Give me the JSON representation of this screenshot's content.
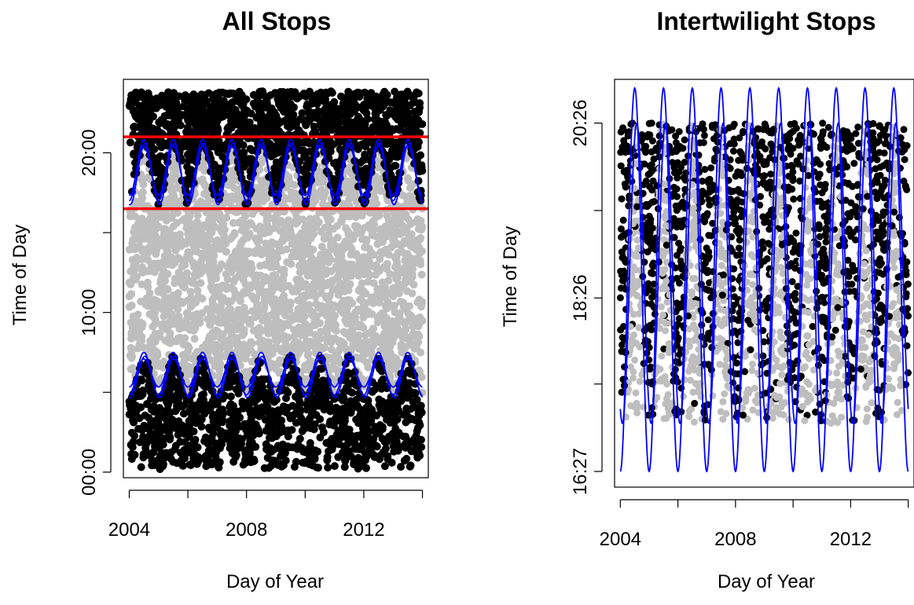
{
  "colors": {
    "night": "#000000",
    "day": "#bebebe",
    "twilight_curve": "#0000ff",
    "threshold_line": "#ff0000"
  },
  "chart_data": [
    {
      "type": "scatter",
      "title": "All Stops",
      "xlabel": "Day of Year",
      "ylabel": "Time of Day",
      "xlim": [
        2004,
        2014
      ],
      "ylim": [
        "00:00",
        "24:00"
      ],
      "x_ticks": [
        2004,
        2006,
        2008,
        2010,
        2012,
        2014
      ],
      "x_tick_labels": [
        "2004",
        "",
        "2008",
        "",
        "2012",
        ""
      ],
      "y_ticks": [
        "00:00",
        "05:00",
        "10:00",
        "15:00",
        "20:00"
      ],
      "y_tick_labels": [
        "00:00",
        "",
        "10:00",
        "",
        "20:00"
      ],
      "series": [
        {
          "kind": "points",
          "color": "night",
          "regions": [
            {
              "from": "00:00",
              "to": "dawn"
            },
            {
              "from": "dusk",
              "to": "24:00"
            }
          ]
        },
        {
          "kind": "points",
          "color": "day",
          "regions": [
            {
              "from": "dawn",
              "to": "dusk"
            }
          ]
        },
        {
          "kind": "seasonal-curves",
          "color": "twilight_curve",
          "period_years": 1,
          "dusk_curves": [
            {
              "min": "17:00",
              "max": "20:50",
              "phase": 0.0
            },
            {
              "min": "17:20",
              "max": "20:25",
              "phase": 0.0
            },
            {
              "min": "16:45",
              "max": "20:35",
              "phase": 0.03
            }
          ],
          "dawn_curves": [
            {
              "min": "04:50",
              "max": "07:30",
              "phase": 0.0
            },
            {
              "min": "05:20",
              "max": "07:05",
              "phase": 0.0
            },
            {
              "min": "04:40",
              "max": "07:15",
              "phase": 0.03
            }
          ]
        },
        {
          "kind": "hlines",
          "color": "threshold_line",
          "y": [
            "16:30",
            "21:00"
          ]
        }
      ],
      "dawn_range": [
        "05:00",
        "07:20"
      ],
      "dusk_range": [
        "17:00",
        "20:45"
      ]
    },
    {
      "type": "scatter",
      "title": "Intertwilight Stops",
      "xlabel": "Day of Year",
      "ylabel": "Time of Day",
      "xlim": [
        2004,
        2014
      ],
      "ylim": [
        "16:27",
        "20:56"
      ],
      "x_ticks": [
        2004,
        2006,
        2008,
        2010,
        2012,
        2014
      ],
      "x_tick_labels": [
        "2004",
        "",
        "2008",
        "",
        "2012",
        ""
      ],
      "y_ticks": [
        "16:27",
        "17:27",
        "18:26",
        "19:26",
        "20:26"
      ],
      "y_tick_labels": [
        "16:27",
        "",
        "18:26",
        "",
        "20:26"
      ],
      "series": [
        {
          "kind": "points",
          "color": "night",
          "range": [
            "17:00",
            "20:26"
          ]
        },
        {
          "kind": "points",
          "color": "day",
          "range": [
            "17:00",
            "20:26"
          ]
        },
        {
          "kind": "seasonal-curves",
          "color": "twilight_curve",
          "period_years": 1,
          "curves": [
            {
              "min": "16:27",
              "max": "20:50",
              "phase": 0.0
            },
            {
              "min": "17:00",
              "max": "20:26",
              "phase": 0.07
            }
          ]
        }
      ]
    }
  ]
}
